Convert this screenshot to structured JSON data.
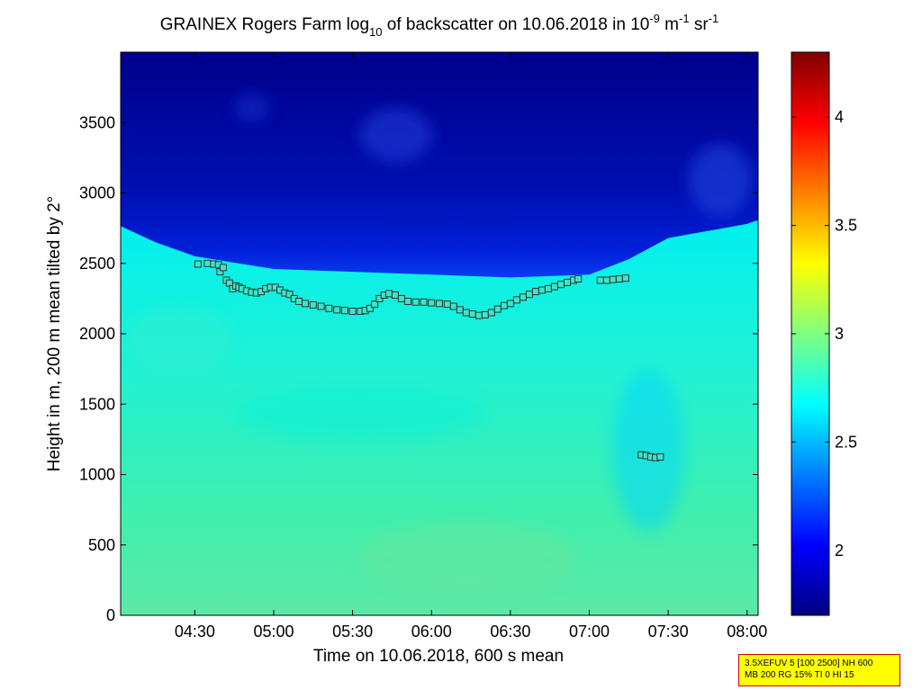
{
  "chart_data": {
    "type": "heatmap",
    "title": {
      "prefix": "GRAINEX Rogers Farm log",
      "sub": "10",
      "middle": " of backscatter on 10.06.2018 in 10",
      "sup1": "-9",
      "unit1": " m",
      "sup2": "-1",
      "unit2": " sr",
      "sup3": "-1"
    },
    "xlabel": "Time on 10.06.2018, 600 s mean",
    "ylabel": "Height in m, 200 m mean tilted by 2°",
    "x_domain_hours": [
      4.03,
      8.07
    ],
    "xlim": [
      "04:02",
      "08:04"
    ],
    "ylim": [
      0,
      4000
    ],
    "x_ticks": [
      {
        "label": "04:30",
        "value": 4.5
      },
      {
        "label": "05:00",
        "value": 5.0
      },
      {
        "label": "05:30",
        "value": 5.5
      },
      {
        "label": "06:00",
        "value": 6.0
      },
      {
        "label": "06:30",
        "value": 6.5
      },
      {
        "label": "07:00",
        "value": 7.0
      },
      {
        "label": "07:30",
        "value": 7.5
      },
      {
        "label": "08:00",
        "value": 8.0
      }
    ],
    "y_ticks": [
      0,
      500,
      1000,
      1500,
      2000,
      2500,
      3000,
      3500
    ],
    "colorbar": {
      "colormap": "jet",
      "range": [
        1.7,
        4.3
      ],
      "ticks": [
        {
          "label": "2",
          "value": 2.0
        },
        {
          "label": "2.5",
          "value": 2.5
        },
        {
          "label": "3",
          "value": 3.0
        },
        {
          "label": "3.5",
          "value": 3.5
        },
        {
          "label": "4",
          "value": 4.0
        }
      ]
    },
    "boundary_layer_top_m": [
      [
        4.0,
        2780
      ],
      [
        4.25,
        2650
      ],
      [
        4.5,
        2550
      ],
      [
        5.0,
        2460
      ],
      [
        5.5,
        2440
      ],
      [
        6.0,
        2420
      ],
      [
        6.5,
        2400
      ],
      [
        7.0,
        2420
      ],
      [
        7.25,
        2530
      ],
      [
        7.5,
        2680
      ],
      [
        7.75,
        2730
      ],
      [
        8.0,
        2780
      ],
      [
        8.1,
        2820
      ]
    ],
    "series": [
      {
        "marker": "square",
        "points": [
          [
            4.52,
            2495
          ],
          [
            4.58,
            2500
          ],
          [
            4.62,
            2495
          ],
          [
            4.65,
            2490
          ],
          [
            4.66,
            2440
          ],
          [
            4.68,
            2470
          ],
          [
            4.7,
            2380
          ],
          [
            4.72,
            2360
          ],
          [
            4.74,
            2320
          ],
          [
            4.76,
            2340
          ],
          [
            4.78,
            2330
          ],
          [
            4.8,
            2320
          ],
          [
            4.83,
            2305
          ],
          [
            4.86,
            2295
          ],
          [
            4.89,
            2290
          ],
          [
            4.92,
            2300
          ],
          [
            4.95,
            2320
          ],
          [
            4.98,
            2330
          ],
          [
            5.01,
            2330
          ],
          [
            5.04,
            2310
          ],
          [
            5.07,
            2290
          ],
          [
            5.1,
            2280
          ],
          [
            5.13,
            2250
          ],
          [
            5.16,
            2230
          ],
          [
            5.2,
            2215
          ],
          [
            5.25,
            2205
          ],
          [
            5.3,
            2195
          ],
          [
            5.35,
            2180
          ],
          [
            5.4,
            2170
          ],
          [
            5.45,
            2165
          ],
          [
            5.5,
            2160
          ],
          [
            5.55,
            2160
          ],
          [
            5.58,
            2165
          ],
          [
            5.61,
            2180
          ],
          [
            5.64,
            2210
          ],
          [
            5.67,
            2250
          ],
          [
            5.7,
            2275
          ],
          [
            5.73,
            2285
          ],
          [
            5.77,
            2275
          ],
          [
            5.81,
            2250
          ],
          [
            5.85,
            2230
          ],
          [
            5.9,
            2225
          ],
          [
            5.95,
            2225
          ],
          [
            6.0,
            2220
          ],
          [
            6.05,
            2215
          ],
          [
            6.1,
            2210
          ],
          [
            6.14,
            2195
          ],
          [
            6.18,
            2170
          ],
          [
            6.22,
            2150
          ],
          [
            6.26,
            2140
          ],
          [
            6.3,
            2130
          ],
          [
            6.34,
            2135
          ],
          [
            6.38,
            2150
          ],
          [
            6.42,
            2175
          ],
          [
            6.46,
            2200
          ],
          [
            6.5,
            2215
          ],
          [
            6.54,
            2240
          ],
          [
            6.58,
            2260
          ],
          [
            6.62,
            2280
          ],
          [
            6.66,
            2300
          ],
          [
            6.7,
            2310
          ],
          [
            6.74,
            2320
          ],
          [
            6.78,
            2335
          ],
          [
            6.82,
            2350
          ],
          [
            6.86,
            2365
          ],
          [
            6.9,
            2380
          ],
          [
            6.93,
            2390
          ],
          [
            7.07,
            2380
          ],
          [
            7.11,
            2380
          ],
          [
            7.15,
            2385
          ],
          [
            7.19,
            2390
          ],
          [
            7.23,
            2395
          ],
          [
            7.33,
            1140
          ],
          [
            7.36,
            1135
          ],
          [
            7.39,
            1125
          ],
          [
            7.42,
            1120
          ],
          [
            7.45,
            1125
          ]
        ]
      }
    ]
  },
  "infobox": {
    "line1": "3.5XEFUV 5 [100 2500] NH 600",
    "line2": "MB 200 RG 15% TI 0 HI 15"
  }
}
